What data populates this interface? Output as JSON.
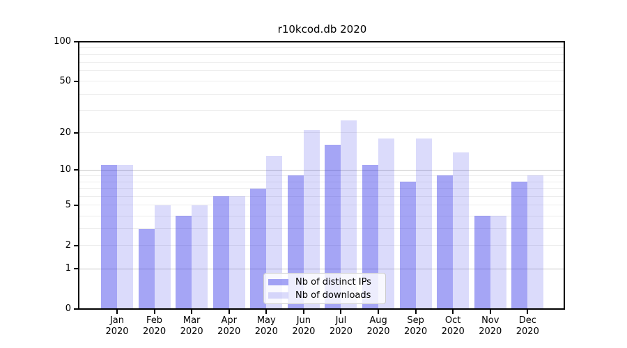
{
  "title": "r10kcod.db 2020",
  "chart_data": {
    "type": "bar",
    "months": [
      "Jan",
      "Feb",
      "Mar",
      "Apr",
      "May",
      "Jun",
      "Jul",
      "Aug",
      "Sep",
      "Oct",
      "Nov",
      "Dec"
    ],
    "year": "2020",
    "series": [
      {
        "name": "Nb of distinct IPs",
        "color": "rgba(40,40,230,0.42)",
        "values": [
          11,
          3,
          4,
          6,
          7,
          9,
          16,
          11,
          8,
          9,
          4,
          8
        ]
      },
      {
        "name": "Nb of downloads",
        "color": "rgba(40,40,230,0.17)",
        "values": [
          11,
          5,
          5,
          6,
          13,
          21,
          25,
          18,
          18,
          14,
          4,
          9
        ]
      }
    ],
    "yscale": "log1p",
    "yticks": [
      0,
      1,
      2,
      5,
      10,
      20,
      50,
      100
    ],
    "ylim": [
      0,
      113
    ],
    "grid": true,
    "legend_position": "lower-center"
  },
  "colors": {
    "grid_major": "#c6c6c6",
    "grid_minor": "#ececec",
    "axis": "#000000",
    "legend_border": "#cccccc"
  }
}
